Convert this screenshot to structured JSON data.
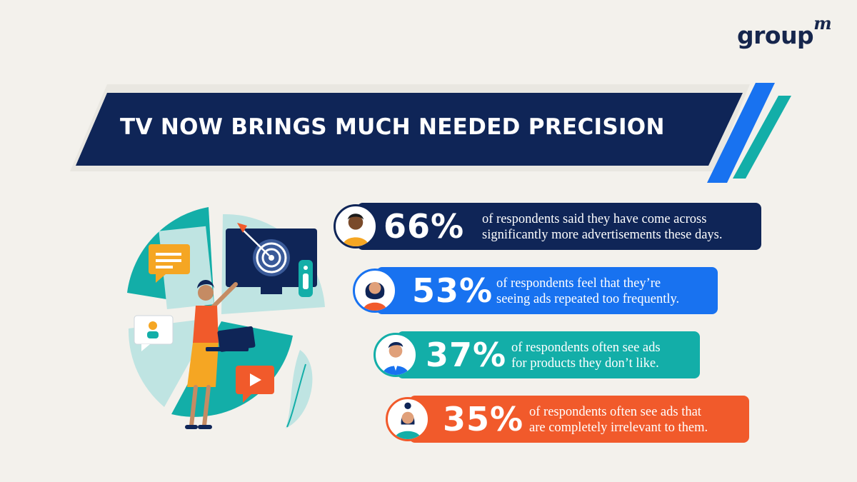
{
  "brand": {
    "logo_text": "group",
    "logo_sup": "m"
  },
  "banner": {
    "title": "TV NOW BRINGS MUCH NEEDED PRECISION"
  },
  "stats": [
    {
      "percent": "66%",
      "line1": "of respondents said they have come across",
      "line2": "significantly more advertisements these days.",
      "color": "#0f2557"
    },
    {
      "percent": "53%",
      "line1": "of respondents feel that they’re",
      "line2": "seeing ads repeated too frequently.",
      "color": "#1872f0"
    },
    {
      "percent": "37%",
      "line1": "of respondents often see ads",
      "line2": "for products they don’t like.",
      "color": "#13aea8"
    },
    {
      "percent": "35%",
      "line1": "of respondents often see ads that",
      "line2": "are completely irrelevant to them.",
      "color": "#f15a2b"
    }
  ],
  "illustration": {
    "icons": [
      "target-icon",
      "remote-icon",
      "chat-icon",
      "user-card-icon",
      "play-icon",
      "laptop-icon"
    ]
  },
  "colors": {
    "navy": "#0f2557",
    "blue": "#1872f0",
    "teal": "#13aea8",
    "orange": "#f15a2b",
    "background": "#f3f1ec"
  }
}
